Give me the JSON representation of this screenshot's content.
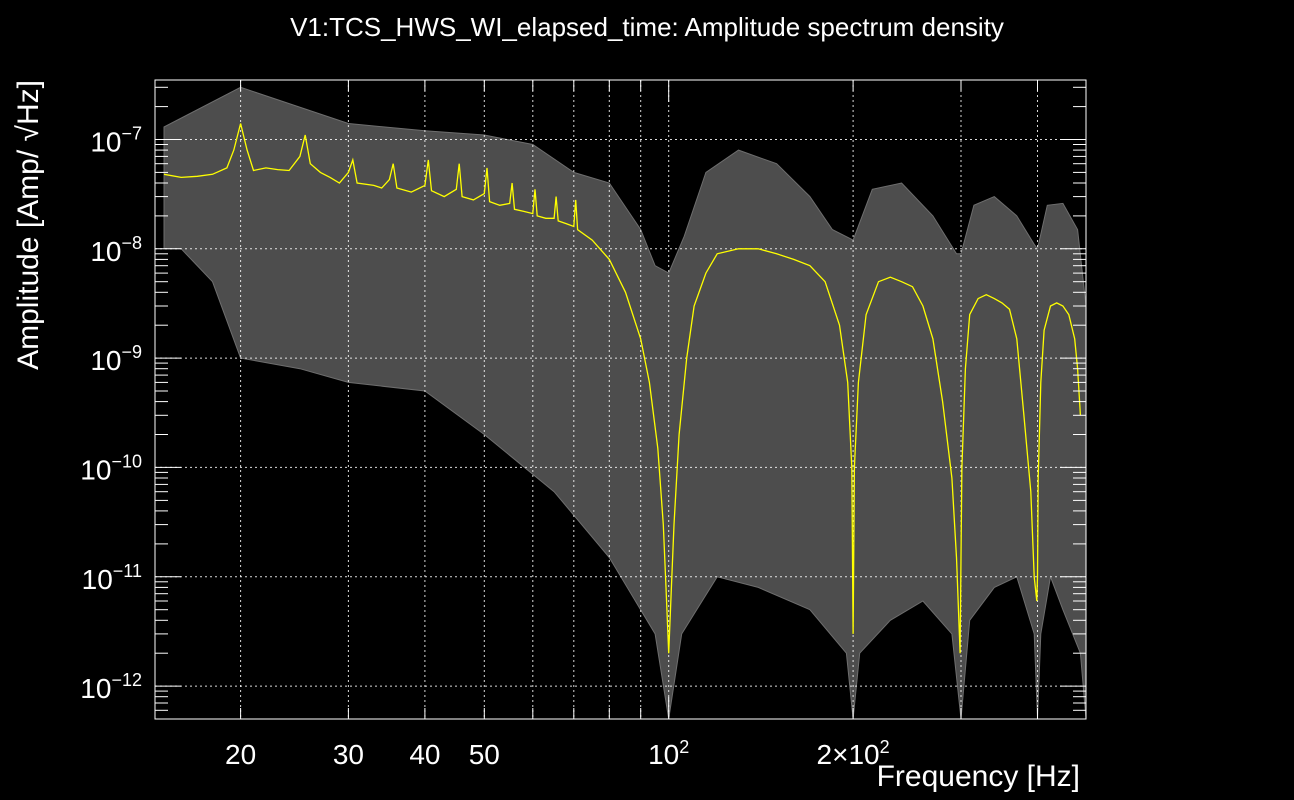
{
  "chart_data": {
    "type": "line",
    "title": "V1:TCS_HWS_WI_elapsed_time: Amplitude spectrum density",
    "xlabel": "Frequency [Hz]",
    "ylabel": "Amplitude [Amp/ √Hz]",
    "x_scale": "log",
    "y_scale": "log",
    "xlim": [
      14.5,
      480
    ],
    "ylim": [
      5e-13,
      3.5e-07
    ],
    "grid": true,
    "x_ticks": [
      {
        "value": 20,
        "label": "20"
      },
      {
        "value": 30,
        "label": "30"
      },
      {
        "value": 40,
        "label": "40"
      },
      {
        "value": 50,
        "label": "50"
      },
      {
        "value": 100,
        "label": "10",
        "exp": "2"
      },
      {
        "value": 200,
        "label": "2×10",
        "exp": "2"
      }
    ],
    "y_ticks": [
      {
        "value": 1e-07,
        "label": "10",
        "exp": "−7"
      },
      {
        "value": 1e-08,
        "label": "10",
        "exp": "−8"
      },
      {
        "value": 1e-09,
        "label": "10",
        "exp": "−9"
      },
      {
        "value": 1e-10,
        "label": "10",
        "exp": "−10"
      },
      {
        "value": 1e-11,
        "label": "10",
        "exp": "−11"
      },
      {
        "value": 1e-12,
        "label": "10",
        "exp": "−12"
      }
    ],
    "colors": {
      "background": "#000000",
      "band": "#4d4d4d",
      "band_line": "#6e6e6e",
      "median": "#ffff00",
      "grid": "#ffffff"
    },
    "series": [
      {
        "role": "median",
        "x": [
          15,
          16,
          17,
          18,
          19,
          19.5,
          20,
          20.5,
          21,
          22,
          23,
          24,
          25,
          25.5,
          26,
          27,
          28,
          29,
          30,
          30.5,
          31,
          33,
          34,
          35,
          35.5,
          36,
          38,
          40,
          40.5,
          41,
          43,
          45,
          45.5,
          46,
          48,
          50,
          50.5,
          51,
          53,
          55,
          55.5,
          56,
          58,
          60,
          60.5,
          61,
          63,
          65,
          65.5,
          66,
          68,
          70,
          70.5,
          71,
          75,
          80,
          85,
          90,
          93,
          96,
          98,
          99,
          100,
          101,
          102,
          104,
          107,
          110,
          115,
          120,
          130,
          140,
          150,
          160,
          170,
          180,
          190,
          196,
          199,
          200,
          201,
          204,
          210,
          220,
          230,
          240,
          250,
          260,
          270,
          280,
          290,
          295,
          299,
          300,
          301,
          305,
          310,
          320,
          330,
          340,
          350,
          360,
          370,
          380,
          390,
          395,
          399,
          400,
          401,
          405,
          410,
          420,
          430,
          440,
          450,
          460,
          465,
          470
        ],
        "y": [
          4.8e-08,
          4.5e-08,
          4.6e-08,
          4.8e-08,
          5.5e-08,
          8e-08,
          1.4e-07,
          8e-08,
          5.2e-08,
          5.5e-08,
          5.3e-08,
          5.2e-08,
          7e-08,
          1.1e-07,
          6e-08,
          5e-08,
          4.5e-08,
          4e-08,
          5e-08,
          6.5e-08,
          4e-08,
          3.8e-08,
          3.6e-08,
          4.3e-08,
          6e-08,
          3.6e-08,
          3.3e-08,
          3.8e-08,
          6.5e-08,
          3.4e-08,
          3e-08,
          3.5e-08,
          6e-08,
          3e-08,
          2.8e-08,
          3.2e-08,
          5.5e-08,
          2.7e-08,
          2.5e-08,
          2.6e-08,
          4e-08,
          2.3e-08,
          2.2e-08,
          2.1e-08,
          3.5e-08,
          2e-08,
          1.9e-08,
          1.9e-08,
          3e-08,
          1.8e-08,
          1.7e-08,
          1.6e-08,
          2.8e-08,
          1.5e-08,
          1.2e-08,
          8e-09,
          4e-09,
          1.5e-09,
          6e-10,
          1.5e-10,
          3e-11,
          8e-12,
          2e-12,
          8e-12,
          3e-11,
          2e-10,
          1e-09,
          3e-09,
          6e-09,
          9e-09,
          1e-08,
          1e-08,
          9e-09,
          8e-09,
          7e-09,
          5e-09,
          2e-09,
          6e-10,
          1e-10,
          3e-12,
          1e-10,
          6e-10,
          2.5e-09,
          5e-09,
          5.5e-09,
          5e-09,
          4.5e-09,
          3e-09,
          1.5e-09,
          4e-10,
          8e-11,
          1.5e-11,
          2e-12,
          1.5e-11,
          1e-10,
          8e-10,
          2.5e-09,
          3.5e-09,
          3.8e-09,
          3.5e-09,
          3.2e-09,
          2.8e-09,
          1.5e-09,
          3e-10,
          6e-11,
          1e-11,
          6e-12,
          1e-11,
          8e-11,
          6e-10,
          1.8e-09,
          3e-09,
          3.2e-09,
          3e-09,
          2.5e-09,
          1.5e-09,
          8e-10,
          3e-10
        ]
      }
    ],
    "band": {
      "upper": [
        [
          15,
          1.3e-07
        ],
        [
          20,
          3e-07
        ],
        [
          30,
          1.4e-07
        ],
        [
          40,
          1.2e-07
        ],
        [
          50,
          1.1e-07
        ],
        [
          60,
          9e-08
        ],
        [
          70,
          5e-08
        ],
        [
          80,
          4e-08
        ],
        [
          90,
          1.5e-08
        ],
        [
          95,
          7e-09
        ],
        [
          100,
          6e-09
        ],
        [
          106,
          1.3e-08
        ],
        [
          115,
          5e-08
        ],
        [
          130,
          8e-08
        ],
        [
          150,
          6e-08
        ],
        [
          170,
          3e-08
        ],
        [
          185,
          1.5e-08
        ],
        [
          200,
          1.2e-08
        ],
        [
          215,
          3.5e-08
        ],
        [
          240,
          4e-08
        ],
        [
          270,
          2e-08
        ],
        [
          295,
          9e-09
        ],
        [
          300,
          9e-09
        ],
        [
          315,
          2.5e-08
        ],
        [
          340,
          3e-08
        ],
        [
          370,
          2e-08
        ],
        [
          395,
          1.1e-08
        ],
        [
          400,
          1e-08
        ],
        [
          415,
          2.5e-08
        ],
        [
          440,
          2.6e-08
        ],
        [
          465,
          1.5e-08
        ],
        [
          480,
          3e-09
        ]
      ],
      "lower": [
        [
          480,
          5e-13
        ],
        [
          470,
          2e-12
        ],
        [
          440,
          5e-12
        ],
        [
          420,
          1e-11
        ],
        [
          405,
          3e-12
        ],
        [
          400,
          5e-13
        ],
        [
          395,
          3e-12
        ],
        [
          370,
          1e-11
        ],
        [
          340,
          8e-12
        ],
        [
          310,
          4e-12
        ],
        [
          300,
          5e-13
        ],
        [
          290,
          3e-12
        ],
        [
          260,
          6e-12
        ],
        [
          230,
          4e-12
        ],
        [
          205,
          2e-12
        ],
        [
          200,
          5e-13
        ],
        [
          195,
          2e-12
        ],
        [
          170,
          5e-12
        ],
        [
          140,
          8e-12
        ],
        [
          120,
          1e-11
        ],
        [
          105,
          3e-12
        ],
        [
          100,
          5e-13
        ],
        [
          95,
          3e-12
        ],
        [
          80,
          1.5e-11
        ],
        [
          65,
          6e-11
        ],
        [
          50,
          2e-10
        ],
        [
          40,
          5e-10
        ],
        [
          30,
          6e-10
        ],
        [
          25,
          8e-10
        ],
        [
          20,
          1e-09
        ],
        [
          18,
          5e-09
        ],
        [
          16,
          1e-08
        ],
        [
          15,
          1e-08
        ]
      ]
    }
  }
}
